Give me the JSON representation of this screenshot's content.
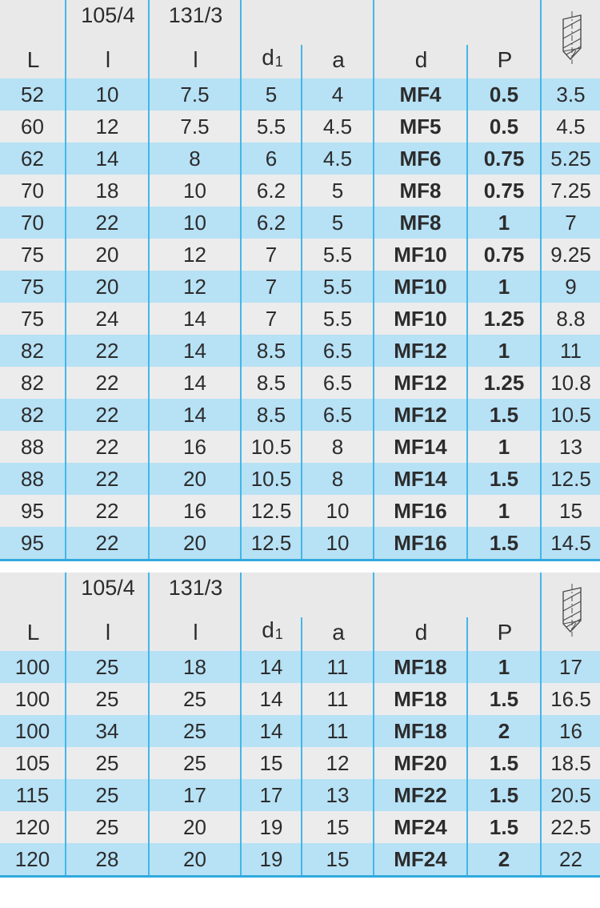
{
  "colors": {
    "row_blue": "#b7e1f5",
    "row_gray": "#ececec",
    "header_bg": "#e9e9e9",
    "grid_line": "#44b6e8",
    "table_bottom_edge": "#31a9de",
    "text": "#2c2c2c"
  },
  "header": {
    "col_L": "L",
    "col_l1_top": "105/4",
    "col_l1_bottom": "l",
    "col_l2_top": "131/3",
    "col_l2_bottom": "l",
    "col_d1_base": "d",
    "col_d1_sub": "1",
    "col_a": "a",
    "col_d": "d",
    "col_P": "P"
  },
  "tables": [
    {
      "rows": [
        [
          "52",
          "10",
          "7.5",
          "5",
          "4",
          "MF4",
          "0.5",
          "3.5"
        ],
        [
          "60",
          "12",
          "7.5",
          "5.5",
          "4.5",
          "MF5",
          "0.5",
          "4.5"
        ],
        [
          "62",
          "14",
          "8",
          "6",
          "4.5",
          "MF6",
          "0.75",
          "5.25"
        ],
        [
          "70",
          "18",
          "10",
          "6.2",
          "5",
          "MF8",
          "0.75",
          "7.25"
        ],
        [
          "70",
          "22",
          "10",
          "6.2",
          "5",
          "MF8",
          "1",
          "7"
        ],
        [
          "75",
          "20",
          "12",
          "7",
          "5.5",
          "MF10",
          "0.75",
          "9.25"
        ],
        [
          "75",
          "20",
          "12",
          "7",
          "5.5",
          "MF10",
          "1",
          "9"
        ],
        [
          "75",
          "24",
          "14",
          "7",
          "5.5",
          "MF10",
          "1.25",
          "8.8"
        ],
        [
          "82",
          "22",
          "14",
          "8.5",
          "6.5",
          "MF12",
          "1",
          "11"
        ],
        [
          "82",
          "22",
          "14",
          "8.5",
          "6.5",
          "MF12",
          "1.25",
          "10.8"
        ],
        [
          "82",
          "22",
          "14",
          "8.5",
          "6.5",
          "MF12",
          "1.5",
          "10.5"
        ],
        [
          "88",
          "22",
          "16",
          "10.5",
          "8",
          "MF14",
          "1",
          "13"
        ],
        [
          "88",
          "22",
          "20",
          "10.5",
          "8",
          "MF14",
          "1.5",
          "12.5"
        ],
        [
          "95",
          "22",
          "16",
          "12.5",
          "10",
          "MF16",
          "1",
          "15"
        ],
        [
          "95",
          "22",
          "20",
          "12.5",
          "10",
          "MF16",
          "1.5",
          "14.5"
        ]
      ]
    },
    {
      "rows": [
        [
          "100",
          "25",
          "18",
          "14",
          "11",
          "MF18",
          "1",
          "17"
        ],
        [
          "100",
          "25",
          "25",
          "14",
          "11",
          "MF18",
          "1.5",
          "16.5"
        ],
        [
          "100",
          "34",
          "25",
          "14",
          "11",
          "MF18",
          "2",
          "16"
        ],
        [
          "105",
          "25",
          "25",
          "15",
          "12",
          "MF20",
          "1.5",
          "18.5"
        ],
        [
          "115",
          "25",
          "17",
          "17",
          "13",
          "MF22",
          "1.5",
          "20.5"
        ],
        [
          "120",
          "25",
          "20",
          "19",
          "15",
          "MF24",
          "1.5",
          "22.5"
        ],
        [
          "120",
          "28",
          "20",
          "19",
          "15",
          "MF24",
          "2",
          "22"
        ]
      ]
    }
  ]
}
